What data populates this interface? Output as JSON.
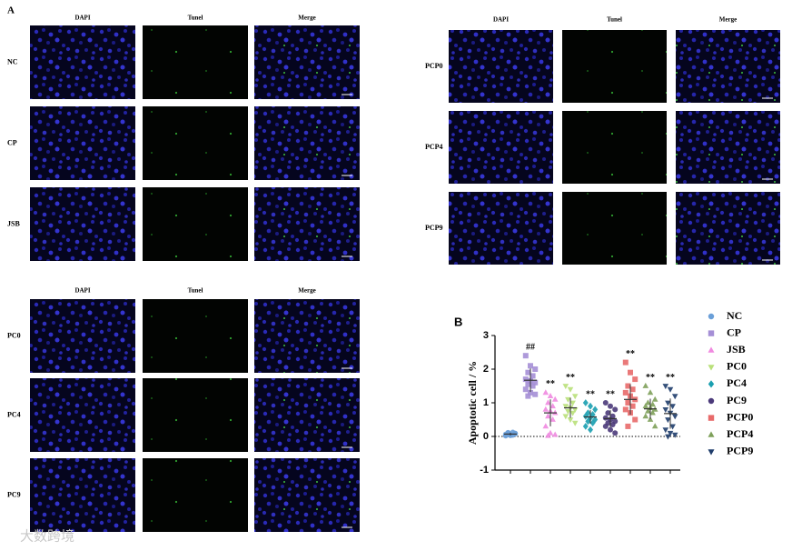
{
  "panel_a": {
    "label": "A",
    "grids": [
      {
        "columns": [
          "DAPI",
          "Tunel",
          "Merge"
        ],
        "rows": [
          "NC",
          "CP",
          "JSB"
        ]
      },
      {
        "columns": [
          "DAPI",
          "Tunel",
          "Merge"
        ],
        "rows": [
          "PCP0",
          "PCP4",
          "PCP9"
        ]
      },
      {
        "columns": [
          "DAPI",
          "Tunel",
          "Merge"
        ],
        "rows": [
          "PC0",
          "PC4",
          "PC9"
        ]
      }
    ]
  },
  "chart_data": {
    "type": "scatter",
    "label": "B",
    "ylabel": "Apoptotic cell / %",
    "ylim": [
      -1,
      3
    ],
    "yticks": [
      -1,
      0,
      1,
      2,
      3
    ],
    "series": [
      {
        "name": "NC",
        "color": "#6a9fd8",
        "marker": "circle",
        "mean": 0.07,
        "sd": 0.04,
        "values": [
          0.02,
          0.05,
          0.08,
          0.1,
          0.12,
          0.06,
          0.03,
          0.09,
          0.11,
          0.04
        ]
      },
      {
        "name": "CP",
        "color": "#a58fd6",
        "marker": "square",
        "mean": 1.67,
        "sd": 0.35,
        "annotation": "##",
        "values": [
          2.4,
          2.1,
          2.0,
          1.9,
          1.8,
          1.7,
          1.65,
          1.6,
          1.55,
          1.5,
          1.4,
          1.3,
          1.25,
          1.2
        ]
      },
      {
        "name": "JSB",
        "color": "#f08ae0",
        "marker": "triangle-up",
        "mean": 0.7,
        "sd": 0.4,
        "annotation": "**",
        "values": [
          1.3,
          1.2,
          1.1,
          1.0,
          0.9,
          0.8,
          0.75,
          0.7,
          0.6,
          0.5,
          0.3,
          0.1,
          0.05,
          0.02
        ]
      },
      {
        "name": "PC0",
        "color": "#b9e07a",
        "marker": "triangle-down",
        "mean": 0.85,
        "sd": 0.3,
        "annotation": "**",
        "values": [
          1.5,
          1.4,
          1.2,
          1.1,
          1.0,
          0.9,
          0.85,
          0.8,
          0.75,
          0.7,
          0.6,
          0.5,
          0.4
        ]
      },
      {
        "name": "PC4",
        "color": "#1a9fb0",
        "marker": "diamond",
        "mean": 0.58,
        "sd": 0.2,
        "annotation": "**",
        "values": [
          1.0,
          0.9,
          0.8,
          0.7,
          0.65,
          0.6,
          0.55,
          0.5,
          0.45,
          0.4,
          0.3,
          0.2
        ]
      },
      {
        "name": "PC9",
        "color": "#4b3a7a",
        "marker": "circle",
        "mean": 0.53,
        "sd": 0.25,
        "annotation": "**",
        "values": [
          1.0,
          0.9,
          0.8,
          0.7,
          0.6,
          0.55,
          0.5,
          0.45,
          0.4,
          0.35,
          0.3,
          0.2,
          0.1
        ]
      },
      {
        "name": "PCP0",
        "color": "#e86a6a",
        "marker": "square",
        "mean": 1.1,
        "sd": 0.45,
        "annotation": "**",
        "values": [
          2.2,
          1.9,
          1.7,
          1.5,
          1.4,
          1.3,
          1.2,
          1.1,
          1.0,
          0.9,
          0.8,
          0.7,
          0.5,
          0.3
        ]
      },
      {
        "name": "PCP4",
        "color": "#7ea05a",
        "marker": "triangle-up",
        "mean": 0.82,
        "sd": 0.3,
        "annotation": "**",
        "values": [
          1.5,
          1.3,
          1.1,
          1.0,
          0.95,
          0.9,
          0.85,
          0.8,
          0.75,
          0.7,
          0.6,
          0.5,
          0.3
        ]
      },
      {
        "name": "PCP9",
        "color": "#1f3d6b",
        "marker": "triangle-down",
        "mean": 0.68,
        "sd": 0.45,
        "annotation": "**",
        "values": [
          1.5,
          1.4,
          1.2,
          1.0,
          0.9,
          0.8,
          0.7,
          0.6,
          0.5,
          0.3,
          0.2,
          0.1,
          0.05,
          0
        ]
      }
    ]
  },
  "watermark": "大数跨境"
}
